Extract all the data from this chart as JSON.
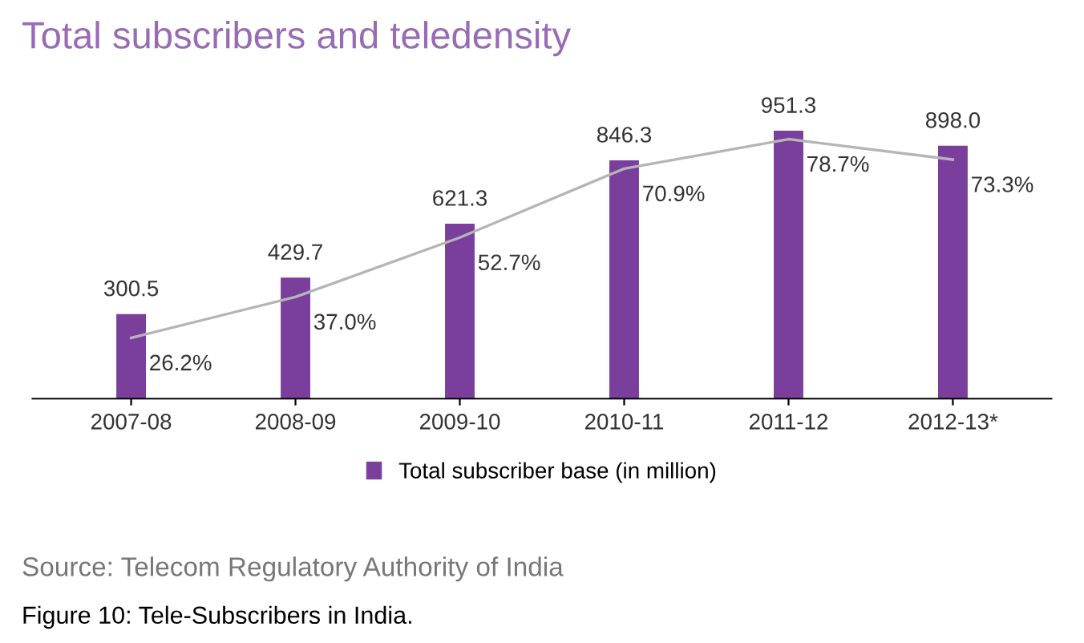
{
  "chart_data": {
    "type": "bar",
    "title": "Total subscribers and teledensity",
    "categories": [
      "2007-08",
      "2008-09",
      "2009-10",
      "2010-11",
      "2011-12",
      "2012-13*"
    ],
    "series": [
      {
        "name": "Total subscriber base (in million)",
        "color": "#7a3e9d",
        "values": [
          300.5,
          429.7,
          621.3,
          846.3,
          951.3,
          898.0
        ],
        "value_labels": [
          "300.5",
          "429.7",
          "621.3",
          "846.3",
          "951.3",
          "898.0"
        ]
      },
      {
        "type": "line",
        "axis": "y2",
        "color": "#b5b5b5",
        "values": [
          26.2,
          37.0,
          52.7,
          70.9,
          78.7,
          73.3
        ],
        "value_labels": [
          "26.2%",
          "37.0%",
          "52.7%",
          "70.9%",
          "78.7%",
          "73.3%"
        ]
      }
    ],
    "tick_labels": "x",
    "grid": false,
    "legend": "bottom",
    "marker": "none",
    "line_style": "solid",
    "annotations": [
      "Source: Telecom Regulatory Authority of India",
      "Figure 10: Tele-Subscribers in India."
    ]
  }
}
